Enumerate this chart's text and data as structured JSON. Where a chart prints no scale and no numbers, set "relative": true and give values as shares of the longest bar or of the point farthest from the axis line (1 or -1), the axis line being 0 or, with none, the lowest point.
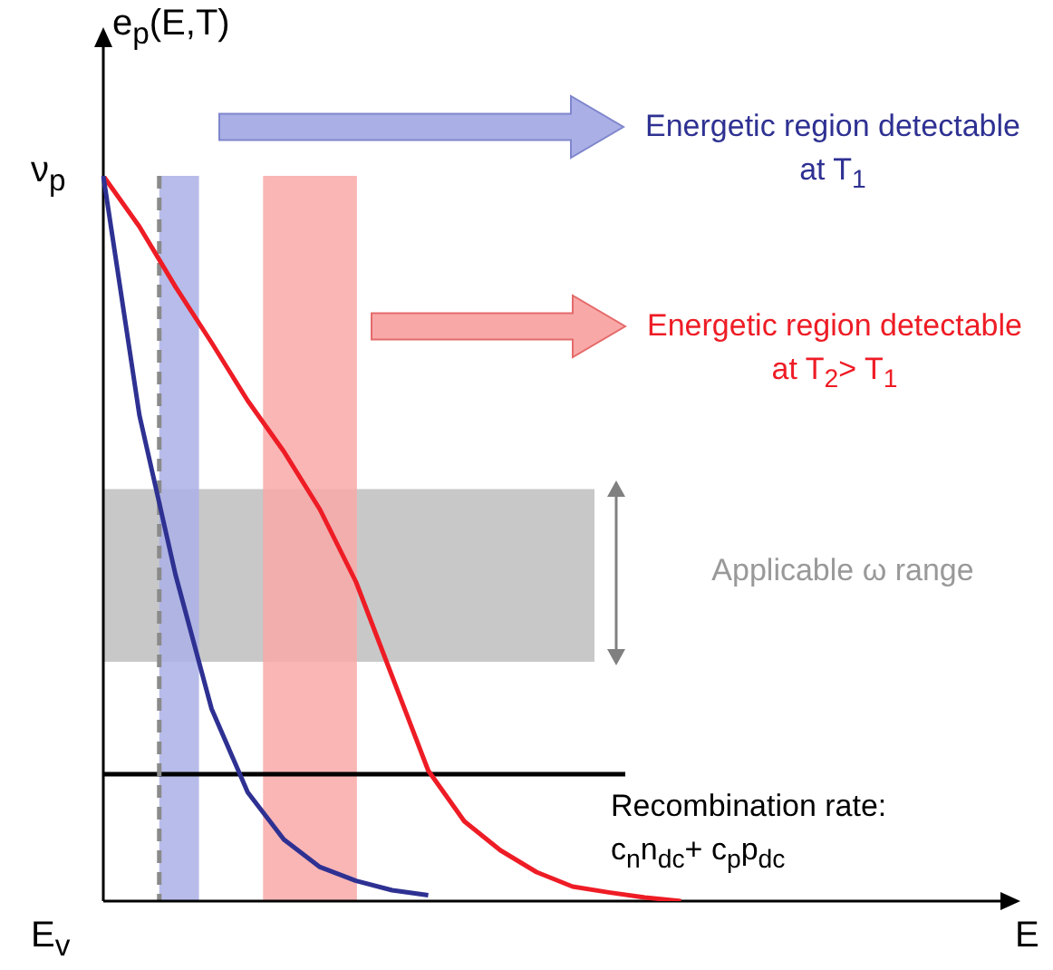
{
  "chart_data": {
    "type": "line",
    "relative": true,
    "xlabel": "E",
    "ylabel": "e$_{p}$(E,T)",
    "annotations": [
      "ν$_{p}$",
      "E$_{v}$",
      "Energetic region detectable at T$_{1}$",
      "Energetic region detectable at T$_{2}$> T$_{1}$",
      "Applicable ω range"
    ],
    "categories": [
      null,
      null,
      null,
      null,
      null,
      null,
      null,
      null,
      null,
      null,
      null,
      null,
      null,
      null,
      null,
      null,
      null,
      null,
      null,
      null,
      null,
      null,
      null,
      null,
      null,
      null
    ],
    "series": [
      {
        "color": "#2e3192",
        "values": [
          1,
          0.67,
          0.45,
          0.265,
          0.15,
          0.085,
          0.047,
          0.028,
          0.015,
          0.008,
          null,
          null,
          null,
          null,
          null,
          null,
          null,
          null,
          null,
          null,
          null,
          null,
          null,
          null,
          null,
          null
        ]
      },
      {
        "color": "#ee1c25",
        "values": [
          1,
          0.93,
          0.847,
          0.77,
          0.69,
          0.62,
          0.54,
          0.44,
          0.31,
          0.18,
          0.11,
          0.07,
          0.04,
          0.02,
          0.012,
          0.005,
          0,
          null,
          null,
          null,
          null,
          null,
          null,
          null,
          null,
          null
        ]
      }
    ],
    "bands": [
      {
        "axis": "y",
        "from": 0.33,
        "to": 0.568,
        "color": "#c8c8c8"
      }
    ],
    "ref_lines": [
      {
        "axis": "y",
        "value": 0.175,
        "label": "Recombination rate: c$_{n}$n$_{dc}$+ c$_{p}$p$_{dc}$",
        "color": "#000000",
        "line_style": "solid"
      }
    ],
    "legend": false,
    "marker": "none",
    "line_style": "solid"
  }
}
